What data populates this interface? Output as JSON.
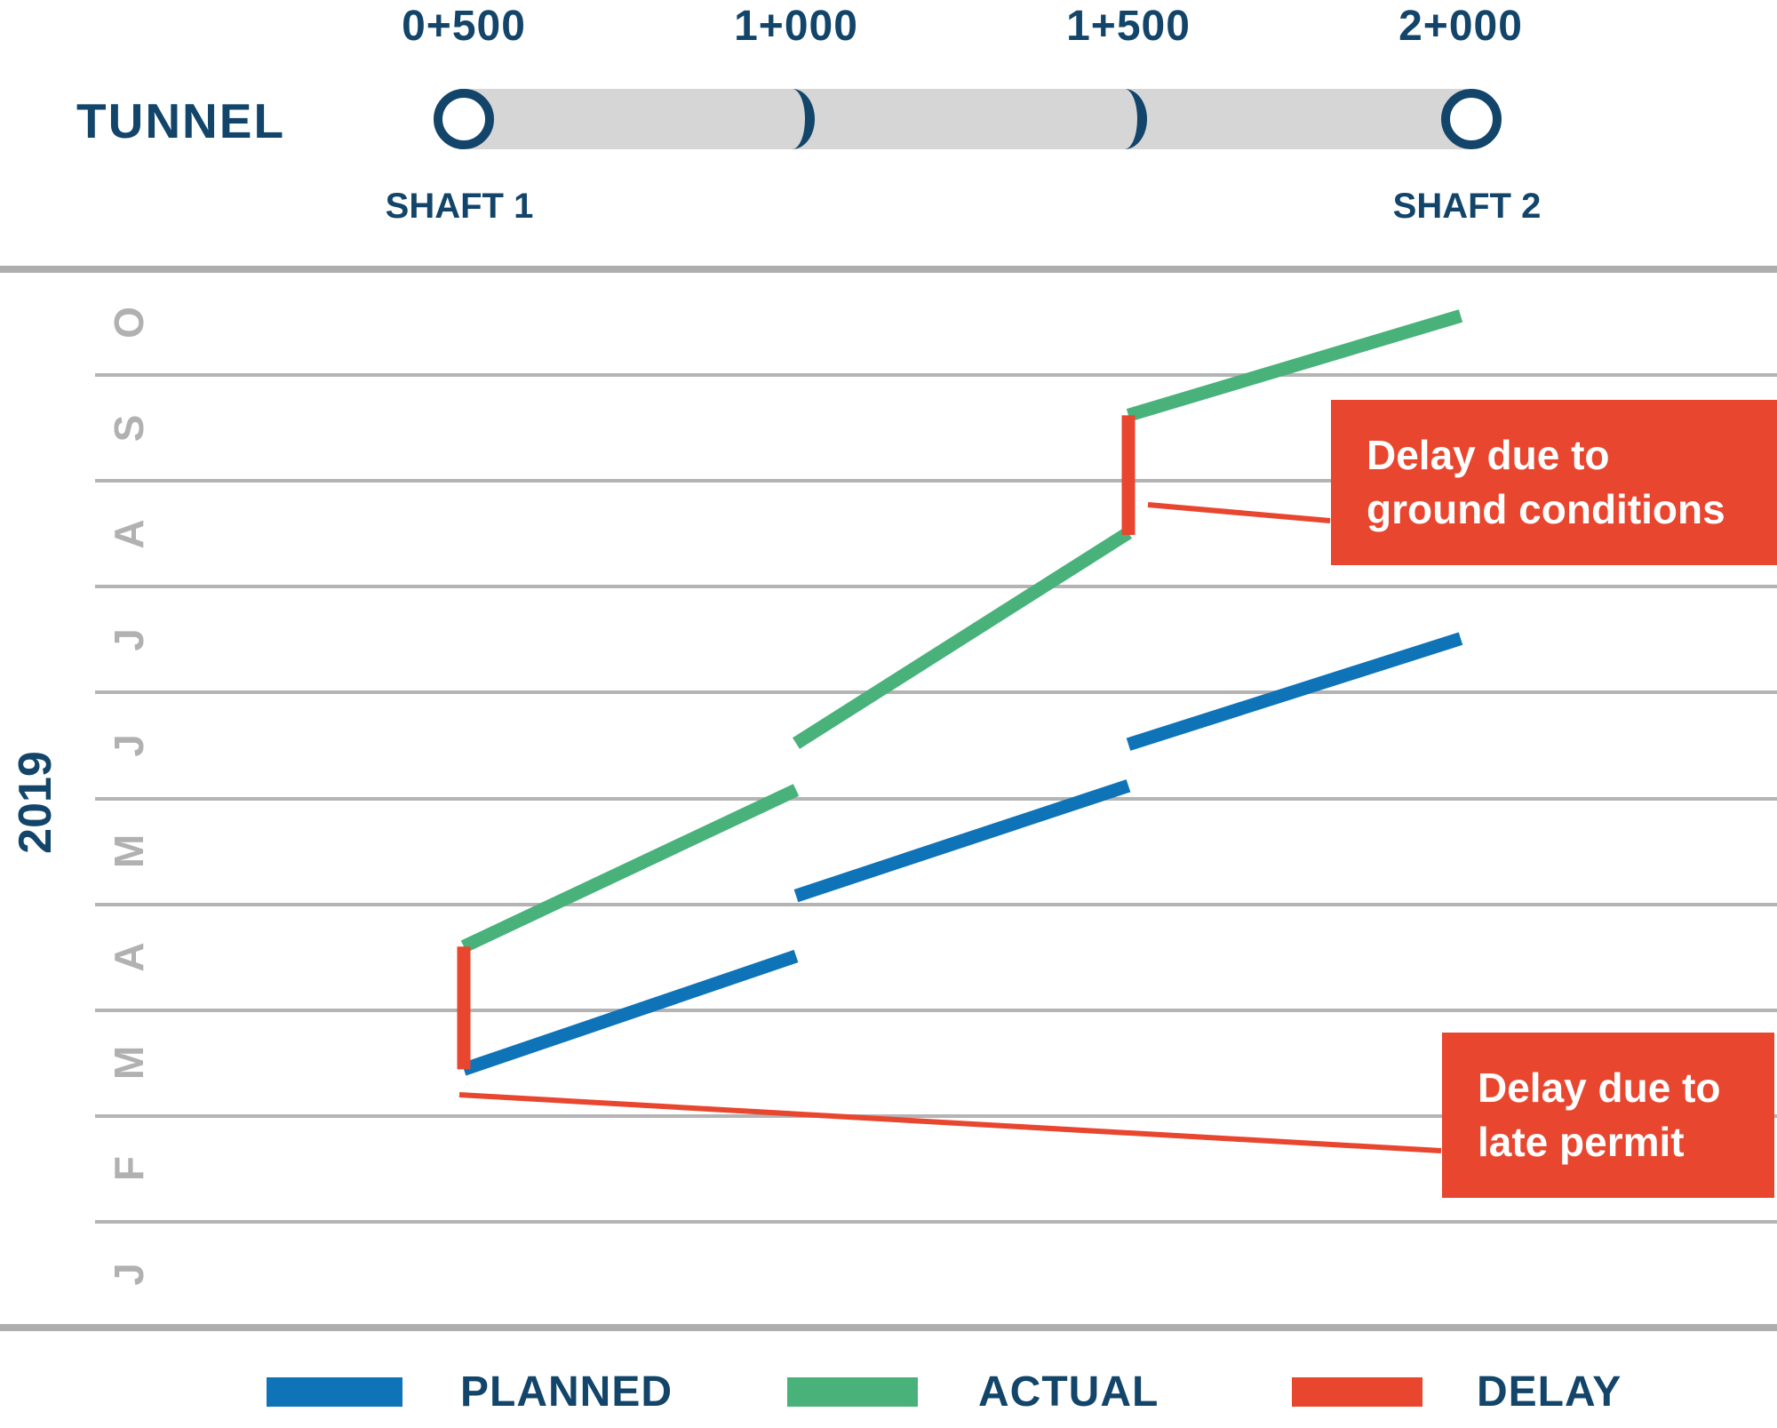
{
  "title_area": {
    "tunnel_label": "TUNNEL",
    "chainages": [
      "0+500",
      "1+000",
      "1+500",
      "2+000"
    ],
    "shaft1": "SHAFT 1",
    "shaft2": "SHAFT 2"
  },
  "axis": {
    "year": "2019",
    "months_top_down": [
      "O",
      "S",
      "A",
      "J",
      "J",
      "M",
      "A",
      "M",
      "F",
      "J"
    ]
  },
  "legend": {
    "items": [
      {
        "label": "PLANNED",
        "series": "planned"
      },
      {
        "label": "ACTUAL",
        "series": "actual"
      },
      {
        "label": "DELAY",
        "series": "delay"
      }
    ]
  },
  "annotations": [
    {
      "lines": [
        "Delay due to",
        "ground conditions"
      ],
      "refers_to": "delay at chainage 1+500"
    },
    {
      "lines": [
        "Delay due to",
        "late permit"
      ],
      "refers_to": "delay at chainage 0+500"
    }
  ],
  "colors": {
    "planned": "#0e73b7",
    "actual": "#49b27a",
    "delay": "#e8462f",
    "navy": "#124569",
    "grid": "#b4b4b4",
    "month_text": "#b1b1b1",
    "tunnel_bar": "#d6d6d6",
    "annotation_bg": "#e8462f",
    "annotation_text": "#ffffff"
  },
  "chart_data": {
    "type": "line",
    "title": "Tunnel time-chainage programme 2019",
    "x_unit": "chainage_m",
    "y_unit": "months_2019_from_jan1",
    "x_ticks": [
      500,
      1000,
      1500,
      2000
    ],
    "y_months_bottom_up": [
      "J",
      "F",
      "M",
      "A",
      "M",
      "J",
      "J",
      "A",
      "S",
      "O"
    ],
    "grid": true,
    "legend_position": "bottom",
    "series": [
      {
        "name": "PLANNED",
        "color_key": "planned",
        "segments": [
          {
            "x": [
              500,
              1000
            ],
            "t": [
              2.44,
              3.51
            ]
          },
          {
            "x": [
              1000,
              1500
            ],
            "t": [
              4.08,
              5.12
            ]
          },
          {
            "x": [
              1500,
              2000
            ],
            "t": [
              5.51,
              6.51
            ]
          }
        ]
      },
      {
        "name": "ACTUAL",
        "color_key": "actual",
        "segments": [
          {
            "x": [
              500,
              1000
            ],
            "t": [
              3.6,
              5.08
            ]
          },
          {
            "x": [
              1000,
              1500
            ],
            "t": [
              5.52,
              7.51
            ]
          },
          {
            "x": [
              1500,
              2000
            ],
            "t": [
              8.62,
              9.56
            ]
          }
        ]
      },
      {
        "name": "DELAY",
        "color_key": "delay",
        "segments": [
          {
            "x": [
              500,
              500
            ],
            "t": [
              2.44,
              3.6
            ]
          },
          {
            "x": [
              1500,
              1500
            ],
            "t": [
              7.49,
              8.62
            ]
          }
        ]
      }
    ]
  }
}
